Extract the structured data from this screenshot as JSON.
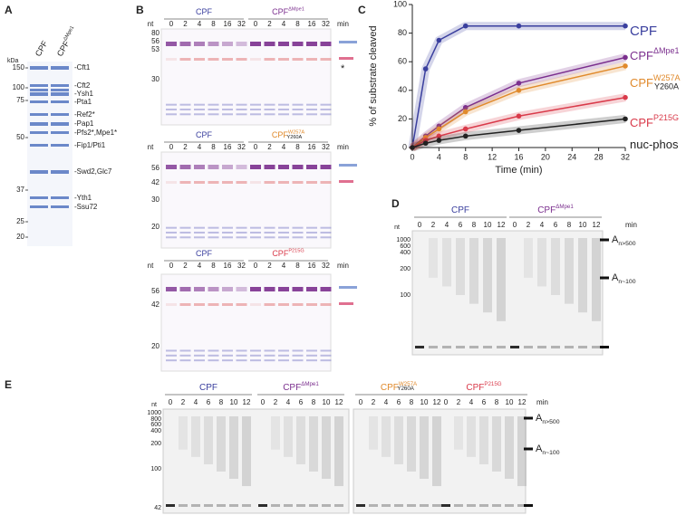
{
  "panel_a": {
    "label": "A",
    "lanes": [
      {
        "text": "CPF"
      },
      {
        "text": "CPF",
        "sup": "ΔMpe1"
      }
    ],
    "unit": "kDa",
    "markers": [
      "150",
      "100",
      "75",
      "50",
      "37",
      "25",
      "20"
    ],
    "proteins": [
      "-Cft1",
      "-Cft2",
      "-Ysh1",
      "-Pta1",
      "-Ref2*",
      "-Pap1",
      "-Pfs2*,Mpe1*",
      "-Fip1/Pti1",
      "-Swd2,Glc7",
      "-Yth1",
      "-Ssu72"
    ]
  },
  "panel_b": {
    "label": "B",
    "gels": [
      {
        "groups": [
          {
            "text": "CPF"
          },
          {
            "text": "CPF",
            "sup": "ΔMpe1"
          }
        ],
        "times": [
          "0",
          "2",
          "4",
          "8",
          "16",
          "32"
        ],
        "time_unit": "min",
        "unit": "nt",
        "markers": [
          "80",
          "56",
          "53",
          "30"
        ],
        "asterisk": "*"
      },
      {
        "groups": [
          {
            "text": "CPF"
          },
          {
            "text": "CPF",
            "sup": "W257A",
            "sup2": "Y260A"
          }
        ],
        "times": [
          "0",
          "2",
          "4",
          "8",
          "16",
          "32"
        ],
        "time_unit": "min",
        "unit": "nt",
        "markers": [
          "56",
          "42",
          "30",
          "20"
        ]
      },
      {
        "groups": [
          {
            "text": "CPF"
          },
          {
            "text": "CPF",
            "sup": "P215G"
          }
        ],
        "times": [
          "0",
          "2",
          "4",
          "8",
          "16",
          "32"
        ],
        "time_unit": "min",
        "unit": "nt",
        "markers": [
          "56",
          "42",
          "20"
        ]
      }
    ]
  },
  "chart_data": {
    "type": "line",
    "label": "C",
    "xlabel": "Time (min)",
    "ylabel": "% of substrate cleaved",
    "x": [
      0,
      2,
      4,
      8,
      16,
      32
    ],
    "xlim": [
      0,
      32
    ],
    "xticks": [
      0,
      4,
      8,
      12,
      16,
      20,
      24,
      28,
      32
    ],
    "ylim": [
      0,
      100
    ],
    "yticks": [
      0,
      20,
      40,
      60,
      80,
      100
    ],
    "series": [
      {
        "name": "CPF",
        "color": "#3a3f9e",
        "values": [
          0,
          55,
          75,
          85,
          85,
          85
        ]
      },
      {
        "name": "CPF",
        "sup": "ΔMpe1",
        "color": "#7b2f8e",
        "values": [
          0,
          8,
          15,
          28,
          45,
          63
        ]
      },
      {
        "name": "CPF",
        "sup": "W257A",
        "sup2": "Y260A",
        "color": "#e08a2c",
        "values": [
          0,
          7,
          13,
          25,
          40,
          57
        ]
      },
      {
        "name": "CPF",
        "sup": "P215G",
        "color": "#d93a4a",
        "values": [
          0,
          5,
          8,
          13,
          22,
          35
        ]
      },
      {
        "name": "nuc-phos",
        "color": "#222222",
        "values": [
          0,
          3,
          5,
          8,
          12,
          20
        ]
      }
    ]
  },
  "panel_d": {
    "label": "D",
    "groups": [
      {
        "text": "CPF"
      },
      {
        "text": "CPF",
        "sup": "ΔMpe1"
      }
    ],
    "times": [
      "0",
      "2",
      "4",
      "6",
      "8",
      "10",
      "12"
    ],
    "time_unit": "min",
    "unit": "nt",
    "markers": [
      "1000",
      "600",
      "400",
      "200",
      "100"
    ],
    "products": [
      {
        "text": "A",
        "sub": "n>500"
      },
      {
        "text": "A",
        "sub": "n~100"
      }
    ]
  },
  "panel_e": {
    "label": "E",
    "groups": [
      {
        "text": "CPF"
      },
      {
        "text": "CPF",
        "sup": "ΔMpe1"
      },
      {
        "text": "CPF",
        "sup": "W257A",
        "sup2": "Y260A"
      },
      {
        "text": "CPF",
        "sup": "P215G"
      }
    ],
    "times": [
      "0",
      "2",
      "4",
      "6",
      "8",
      "10",
      "12"
    ],
    "time_unit": "min",
    "unit": "nt",
    "markers": [
      "1000",
      "800",
      "600",
      "400",
      "200",
      "100",
      "42"
    ],
    "products": [
      {
        "text": "A",
        "sub": "n>500"
      },
      {
        "text": "A",
        "sub": "n~100"
      }
    ]
  }
}
